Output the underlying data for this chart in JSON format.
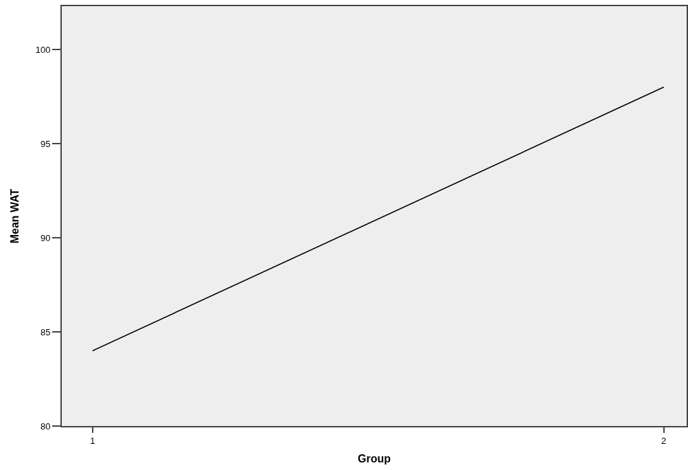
{
  "chart_data": {
    "type": "line",
    "xlabel": "Group",
    "ylabel": "Mean WAT",
    "x": [
      1,
      2
    ],
    "series": [
      {
        "color": "#000000",
        "values": [
          84.0,
          98.0
        ]
      }
    ],
    "xlim": [
      0.946,
      2.04
    ],
    "xticks": [
      1,
      2
    ],
    "ylim": [
      80,
      102.3
    ],
    "yticks": [
      80,
      85,
      90,
      95,
      100
    ],
    "line_style": "solid"
  }
}
